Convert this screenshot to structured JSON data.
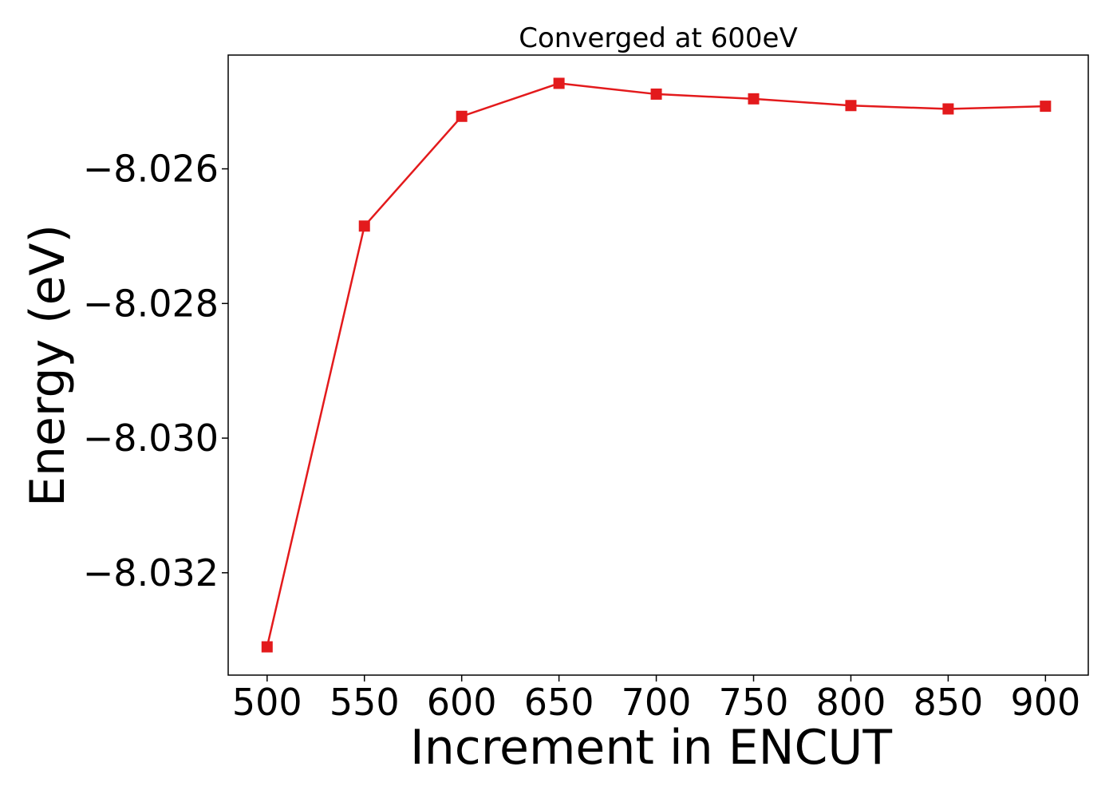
{
  "chart_data": {
    "type": "line",
    "title": "Converged at 600eV",
    "xlabel": "Increment in ENCUT",
    "ylabel": "Energy (eV)",
    "x": [
      500,
      550,
      600,
      650,
      700,
      750,
      800,
      850,
      900
    ],
    "series": [
      {
        "values": [
          -8.0331,
          -8.02685,
          -8.02522,
          -8.02473,
          -8.02489,
          -8.02496,
          -8.02506,
          -8.02511,
          -8.02507
        ],
        "color": "#e31a1c",
        "marker": "square"
      }
    ],
    "xlim": [
      480,
      922
    ],
    "ylim": [
      -8.03352,
      -8.02431
    ],
    "xticks": [
      500,
      550,
      600,
      650,
      700,
      750,
      800,
      850,
      900
    ],
    "xtick_labels": [
      "500",
      "550",
      "600",
      "650",
      "700",
      "750",
      "800",
      "850",
      "900"
    ],
    "yticks": [
      -8.032,
      -8.03,
      -8.028,
      -8.026
    ],
    "ytick_labels": [
      "−8.032",
      "−8.030",
      "−8.028",
      "−8.026"
    ],
    "grid": false,
    "legend": false
  }
}
